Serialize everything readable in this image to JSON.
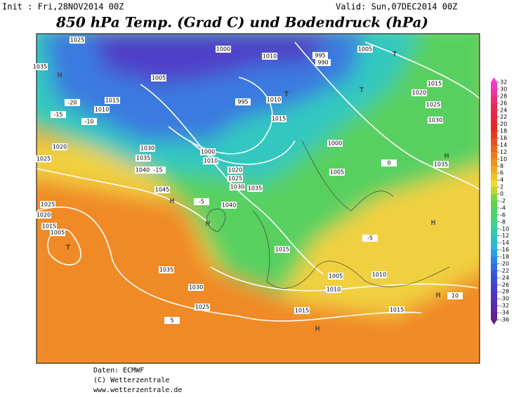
{
  "header": {
    "init": "Init : Fri,28NOV2014 00Z",
    "valid": "Valid: Sun,07DEC2014 00Z",
    "title": "850 hPa Temp. (Grad C) und Bodendruck (hPa)"
  },
  "colorbar": {
    "ticks": [
      32,
      30,
      28,
      26,
      24,
      22,
      20,
      18,
      16,
      14,
      12,
      10,
      8,
      6,
      4,
      2,
      0,
      -2,
      -4,
      -6,
      -8,
      -10,
      -12,
      -14,
      -16,
      -18,
      -20,
      -22,
      -24,
      -26,
      -28,
      -30,
      -32,
      -34,
      -36
    ]
  },
  "map_labels": [
    "1025",
    "1035",
    "H",
    "-20",
    "1015",
    "-15",
    "1010",
    "-10",
    "1020",
    "1025",
    "1030",
    "1035",
    "1040",
    "-15",
    "1045",
    "H",
    "-5",
    "1040",
    "H",
    "1025",
    "1020",
    "1015",
    "1005",
    "T",
    "1035",
    "1030",
    "1025",
    "5",
    "1015",
    "1015",
    "H",
    "1010",
    "1005",
    "1010",
    "1015",
    "H",
    "H",
    "10",
    "1035",
    "H",
    "T",
    "1005",
    "1010",
    "995",
    "990",
    "1000",
    "1005",
    "995",
    "1000",
    "1010",
    "1020",
    "1025",
    "1030",
    "1035",
    "1015",
    "1010",
    "T",
    "T",
    "1000",
    "1005",
    "1015",
    "1020",
    "1025",
    "1030",
    "0",
    "-5"
  ],
  "footer": [
    "Daten: ECMWF",
    "(C) Wetterzentrale",
    "www.wetterzentrale.de"
  ]
}
